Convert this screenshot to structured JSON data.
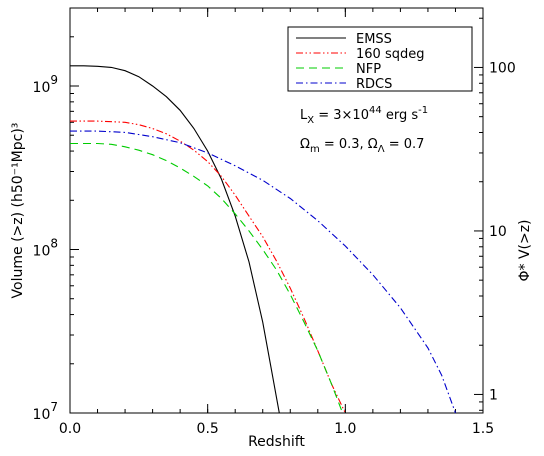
{
  "chart_data": {
    "type": "line",
    "xlabel": "Redshift",
    "ylabel": "Volume (>z) (h50⁻¹Mpc)³",
    "ylabel_right": "Φ* V(>z)",
    "xlim": [
      0.0,
      1.5
    ],
    "ylim": [
      10000000.0,
      3000000000.0
    ],
    "yscale": "log",
    "y2lim": [
      0.77,
      231
    ],
    "y2scale": "log",
    "x_ticks": [
      "0.0",
      "0.5",
      "1.0",
      "1.5"
    ],
    "y_ticks": [
      {
        "value": 1000000000.0,
        "mantissa": "10",
        "exp": "9"
      },
      {
        "value": 100000000.0,
        "mantissa": "10",
        "exp": "8"
      },
      {
        "value": 10000000.0,
        "mantissa": "10",
        "exp": "7"
      }
    ],
    "y2_ticks": [
      {
        "value": 100,
        "label": "100"
      },
      {
        "value": 10,
        "label": "10"
      },
      {
        "value": 1,
        "label": "1"
      }
    ],
    "legend_position": "top-right",
    "series": [
      {
        "name": "EMSS",
        "color": "#000000",
        "dash": "solid",
        "points": [
          [
            0.0,
            1330000000.0
          ],
          [
            0.05,
            1330000000.0
          ],
          [
            0.1,
            1320000000.0
          ],
          [
            0.15,
            1300000000.0
          ],
          [
            0.2,
            1240000000.0
          ],
          [
            0.25,
            1140000000.0
          ],
          [
            0.3,
            1000000000.0
          ],
          [
            0.35,
            860000000.0
          ],
          [
            0.4,
            710000000.0
          ],
          [
            0.45,
            550000000.0
          ],
          [
            0.5,
            400000000.0
          ],
          [
            0.55,
            270000000.0
          ],
          [
            0.6,
            160000000.0
          ],
          [
            0.65,
            84000000.0
          ],
          [
            0.7,
            36000000.0
          ],
          [
            0.73,
            19000000.0
          ],
          [
            0.76,
            10000000.0
          ]
        ]
      },
      {
        "name": "160 sqdeg",
        "color": "#ff0000",
        "dash": "dashdotdot",
        "points": [
          [
            0.0,
            610000000.0
          ],
          [
            0.1,
            610000000.0
          ],
          [
            0.2,
            600000000.0
          ],
          [
            0.25,
            580000000.0
          ],
          [
            0.3,
            550000000.0
          ],
          [
            0.35,
            510000000.0
          ],
          [
            0.4,
            460000000.0
          ],
          [
            0.45,
            405000000.0
          ],
          [
            0.5,
            345000000.0
          ],
          [
            0.55,
            280000000.0
          ],
          [
            0.6,
            215000000.0
          ],
          [
            0.65,
            160000000.0
          ],
          [
            0.7,
            120000000.0
          ],
          [
            0.75,
            85000000.0
          ],
          [
            0.8,
            58000000.0
          ],
          [
            0.85,
            38000000.0
          ],
          [
            0.9,
            24000000.0
          ],
          [
            0.95,
            15000000.0
          ],
          [
            1.0,
            10000000.0
          ]
        ]
      },
      {
        "name": "NFP",
        "color": "#00cc00",
        "dash": "dashed",
        "points": [
          [
            0.0,
            445000000.0
          ],
          [
            0.1,
            445000000.0
          ],
          [
            0.15,
            440000000.0
          ],
          [
            0.2,
            425000000.0
          ],
          [
            0.25,
            405000000.0
          ],
          [
            0.3,
            380000000.0
          ],
          [
            0.35,
            350000000.0
          ],
          [
            0.4,
            315000000.0
          ],
          [
            0.45,
            280000000.0
          ],
          [
            0.5,
            245000000.0
          ],
          [
            0.55,
            205000000.0
          ],
          [
            0.6,
            165000000.0
          ],
          [
            0.65,
            130000000.0
          ],
          [
            0.7,
            100000000.0
          ],
          [
            0.75,
            75000000.0
          ],
          [
            0.8,
            53000000.0
          ],
          [
            0.85,
            36000000.0
          ],
          [
            0.9,
            24000000.0
          ],
          [
            0.95,
            15000000.0
          ],
          [
            0.99,
            10000000.0
          ]
        ]
      },
      {
        "name": "RDCS",
        "color": "#0000cc",
        "dash": "dashdot",
        "points": [
          [
            0.0,
            530000000.0
          ],
          [
            0.1,
            530000000.0
          ],
          [
            0.2,
            520000000.0
          ],
          [
            0.3,
            490000000.0
          ],
          [
            0.4,
            450000000.0
          ],
          [
            0.5,
            390000000.0
          ],
          [
            0.6,
            325000000.0
          ],
          [
            0.7,
            265000000.0
          ],
          [
            0.8,
            205000000.0
          ],
          [
            0.9,
            150000000.0
          ],
          [
            1.0,
            105000000.0
          ],
          [
            1.1,
            70000000.0
          ],
          [
            1.2,
            44000000.0
          ],
          [
            1.3,
            25000000.0
          ],
          [
            1.35,
            17000000.0
          ],
          [
            1.4,
            10000000.0
          ]
        ]
      }
    ],
    "annotations": {
      "lx": {
        "base": "L",
        "sub": "X",
        "mid": " = 3×10",
        "sup": "44",
        "tail": " erg s",
        "sup2": "-1"
      },
      "omega": {
        "o1": "Ω",
        "s1": "m",
        "t1": " = 0.3,  ",
        "o2": "Ω",
        "s2": "Λ",
        "t2": " = 0.7"
      }
    }
  }
}
